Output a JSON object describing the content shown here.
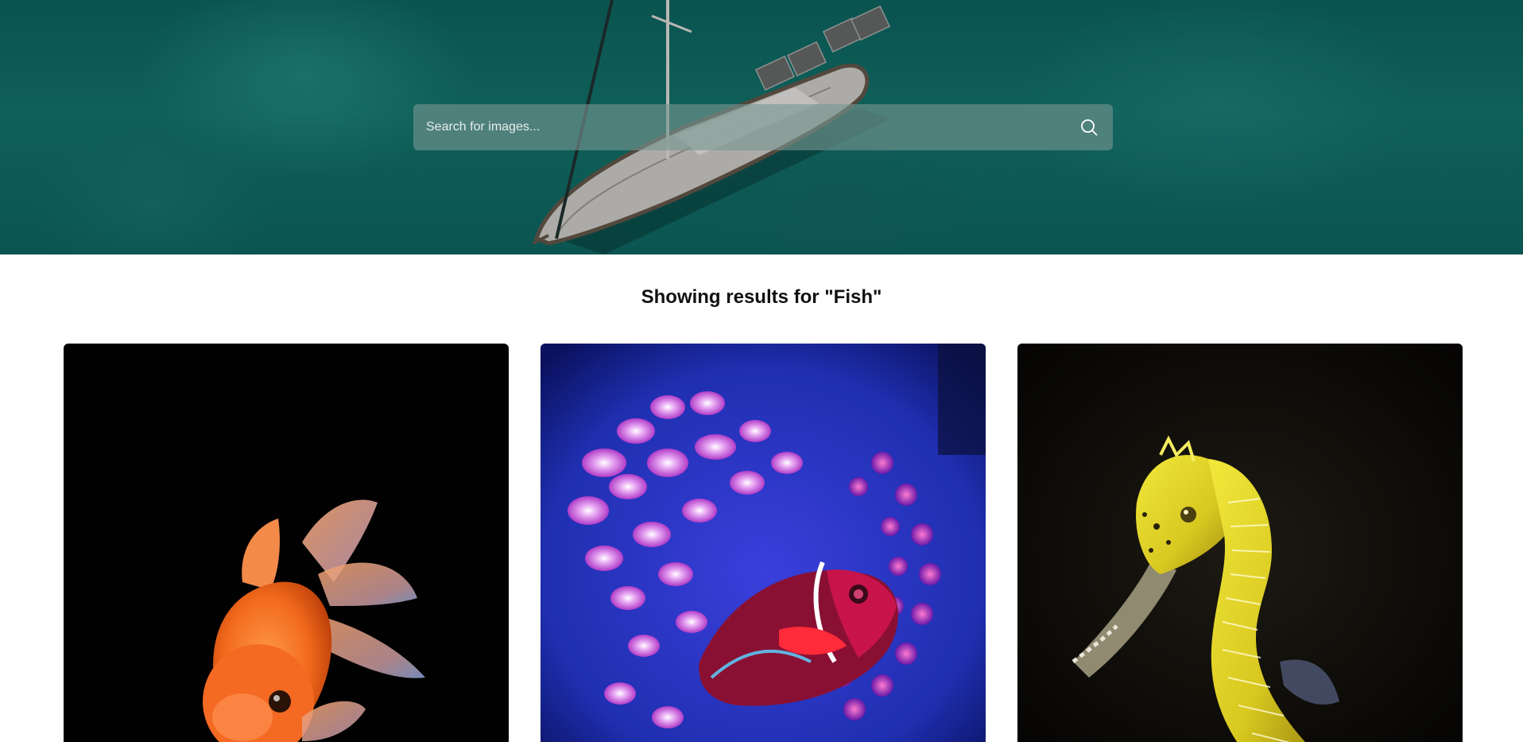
{
  "search": {
    "placeholder": "Search for images...",
    "icon": "search-icon"
  },
  "results": {
    "heading": "Showing results for \"Fish\"",
    "query": "Fish",
    "items": [
      {
        "subject": "goldfish",
        "background": "#010101"
      },
      {
        "subject": "clownfish-anemone",
        "background": "#1f34b8"
      },
      {
        "subject": "seahorse",
        "background": "#0a0906"
      }
    ]
  },
  "colors": {
    "hero_water": "#0f615b",
    "search_bg": "rgba(120,150,145,0.62)",
    "heading_text": "#111111"
  }
}
